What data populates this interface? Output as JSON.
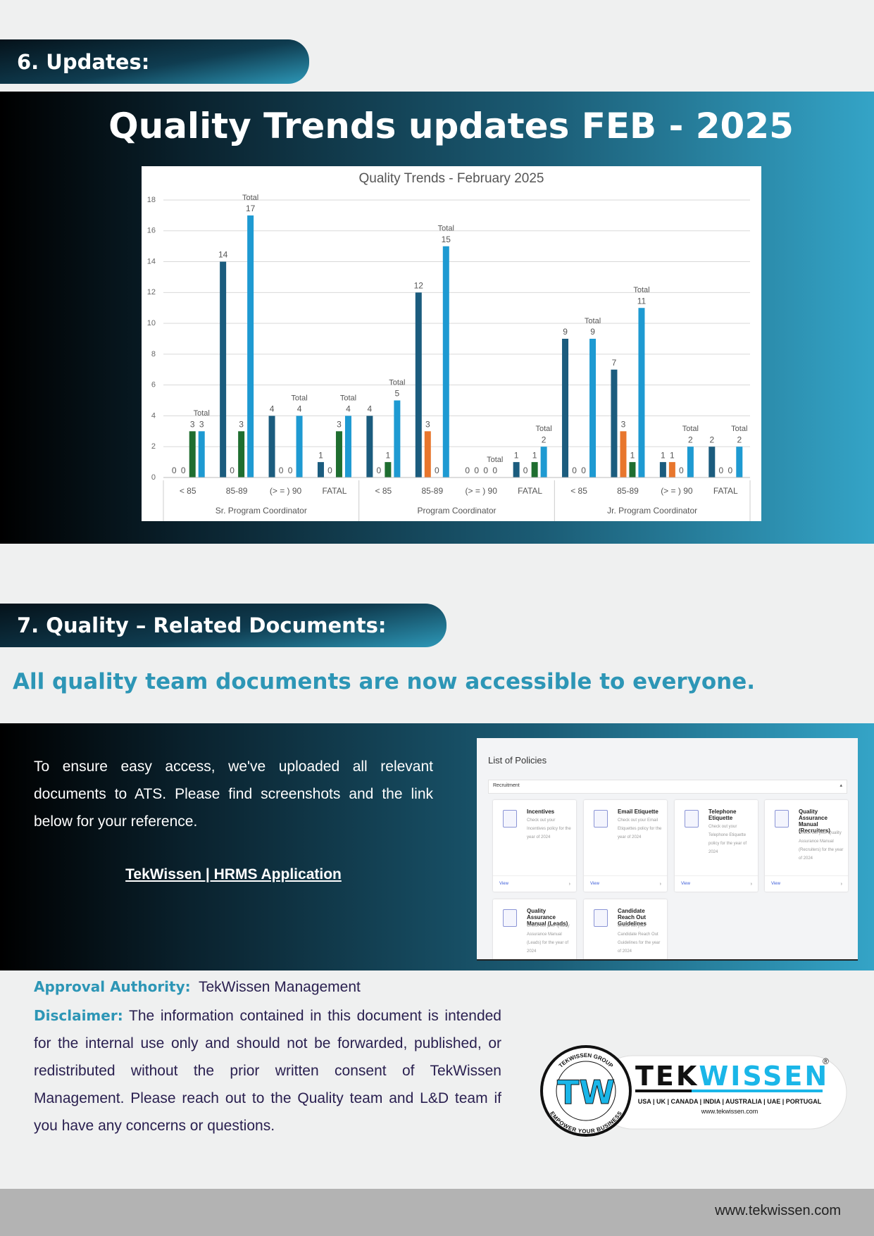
{
  "section6": {
    "heading": "6. Updates:",
    "title": "Quality Trends updates FEB - 2025"
  },
  "chart_data": {
    "type": "bar",
    "title": "Quality Trends  - February 2025",
    "categories": [
      "< 85",
      "85-89",
      "(> = ) 90",
      "FATAL",
      "< 85",
      "85-89",
      "(> = ) 90",
      "FATAL",
      "< 85",
      "85-89",
      "(> = ) 90",
      "FATAL"
    ],
    "groups": [
      "Sr. Program Coordinator",
      "Program Coordinator",
      "Jr. Program Coordinator"
    ],
    "series": [
      {
        "color": "#1b5c7e",
        "values": [
          0,
          14,
          4,
          1,
          4,
          12,
          0,
          1,
          9,
          7,
          1,
          2
        ]
      },
      {
        "color": "#e8762d",
        "values": [
          0,
          0,
          0,
          0,
          0,
          3,
          0,
          0,
          0,
          3,
          1,
          0
        ]
      },
      {
        "color": "#1f6e30",
        "values": [
          3,
          3,
          0,
          3,
          1,
          0,
          0,
          1,
          0,
          1,
          0,
          0
        ]
      },
      {
        "name": "Total",
        "color": "#1e9ad2",
        "values": [
          3,
          17,
          4,
          4,
          5,
          15,
          0,
          2,
          9,
          11,
          2,
          2
        ]
      }
    ],
    "ylim": [
      0,
      18
    ],
    "yticks": [
      0,
      2,
      4,
      6,
      8,
      10,
      12,
      14,
      16,
      18
    ],
    "grid": true
  },
  "section7": {
    "heading": "7. Quality – Related Documents:",
    "subtitle": "All quality team documents are now accessible to everyone.",
    "paragraph": "To ensure easy access, we've uploaded all relevant documents to ATS. Please find screenshots and the link below for your reference.",
    "link": "TekWissen | HRMS Application"
  },
  "policies": {
    "title": "List of Policies",
    "filter": "Recruitment",
    "view": "View",
    "cards": [
      {
        "title": "Incentives",
        "description": "Check out your Incentives policy for the year of 2024"
      },
      {
        "title": "Email Etiquette",
        "description": "Check out your Email Etiquettes policy for the year of 2024"
      },
      {
        "title": "Telephone Etiquette",
        "description": "Check out your Telephone Etiquette policy for the year of 2024"
      },
      {
        "title": "Quality Assurance Manual (Recruiters)",
        "description": "Check out your Quality Assurance Manual (Recruiters) for the year of 2024"
      },
      {
        "title": "Quality Assurance Manual (Leads)",
        "description": "Check out your Quality Assurance Manual (Leads) for the year of 2024"
      },
      {
        "title": "Candidate Reach Out Guidelines",
        "description": "Check out your Candidate Reach Out Guidelines for the year of 2024"
      }
    ]
  },
  "approval": {
    "label": "Approval Authority:",
    "value": "TekWissen Management"
  },
  "disclaimer": {
    "label": "Disclaimer:",
    "text": "The information contained in this document is intended for the internal use only and should not be forwarded, published, or redistributed without the prior written consent of TekWissen Management. Please reach out to the Quality team and L&D team if you have any concerns or questions."
  },
  "logo": {
    "ring_top": "TEKWISSEN GROUP",
    "ring_bottom": "EMPOWER YOUR BUSINESS",
    "mark": "TW",
    "brand_a": "TEK",
    "brand_b": "WISSEN",
    "registered": "®",
    "countries": "USA | UK | CANADA | INDIA | AUSTRALIA | UAE | PORTUGAL",
    "url": "www.tekwissen.com"
  },
  "footer": {
    "url": "www.tekwissen.com"
  }
}
